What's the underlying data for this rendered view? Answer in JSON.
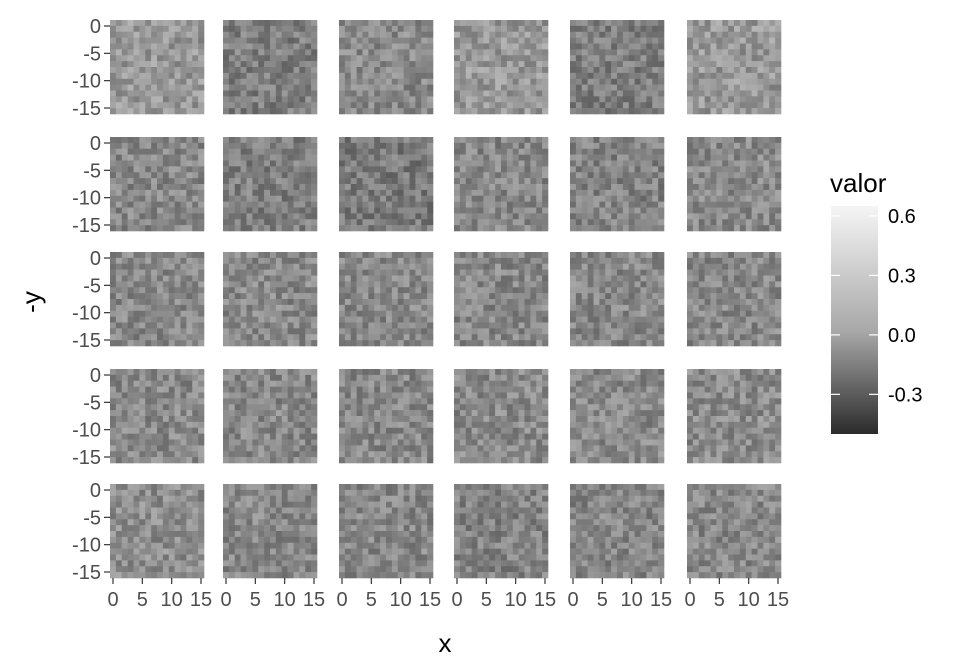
{
  "chart_data": {
    "type": "heatmap",
    "layout": {
      "rows": 5,
      "cols": 6
    },
    "panel_grid": {
      "nx": 16,
      "ny": 16
    },
    "xlabel": "x",
    "ylabel": "-y",
    "x_ticks": [
      "0",
      "5",
      "10",
      "15"
    ],
    "x_tick_values": [
      0,
      5,
      10,
      15
    ],
    "y_ticks": [
      "0",
      "-5",
      "-10",
      "-15"
    ],
    "y_tick_values": [
      0,
      -5,
      -10,
      -15
    ],
    "xlim": [
      0,
      15
    ],
    "ylim": [
      -15,
      0
    ],
    "legend": {
      "title": "valor",
      "labels": [
        "0.6",
        "0.3",
        "0.0",
        "-0.3"
      ],
      "values": [
        0.6,
        0.3,
        0.0,
        -0.3
      ],
      "range": [
        -0.5,
        0.65
      ],
      "position": "right"
    },
    "colors": {
      "low": "#2b2b2b",
      "high": "#f5f5f5",
      "panel_bg": "#ebebeb"
    },
    "panel_mean_values": [
      [
        0.12,
        -0.02,
        0.04,
        0.12,
        -0.02,
        0.12
      ],
      [
        0.03,
        -0.02,
        -0.05,
        0.02,
        0.0,
        0.04
      ],
      [
        0.03,
        0.03,
        0.03,
        0.03,
        0.03,
        0.03
      ],
      [
        0.04,
        0.03,
        0.03,
        0.04,
        0.04,
        0.05
      ],
      [
        0.06,
        0.03,
        0.03,
        0.0,
        0.02,
        0.03
      ]
    ]
  }
}
